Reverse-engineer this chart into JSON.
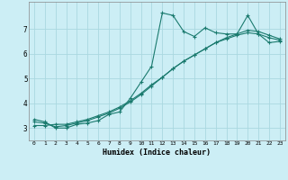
{
  "xlabel": "Humidex (Indice chaleur)",
  "bg_color": "#cceef5",
  "grid_color": "#aad8e0",
  "line_color": "#1a7a6e",
  "xlim": [
    -0.5,
    23.5
  ],
  "ylim": [
    2.5,
    8.1
  ],
  "yticks": [
    3,
    4,
    5,
    6,
    7
  ],
  "xticks": [
    0,
    1,
    2,
    3,
    4,
    5,
    6,
    7,
    8,
    9,
    10,
    11,
    12,
    13,
    14,
    15,
    16,
    17,
    18,
    19,
    20,
    21,
    22,
    23
  ],
  "series1_x": [
    0,
    1,
    2,
    3,
    4,
    5,
    6,
    7,
    8,
    9,
    10,
    11,
    12,
    13,
    14,
    15,
    16,
    17,
    18,
    19,
    20,
    21,
    22,
    23
  ],
  "series1_y": [
    3.35,
    3.25,
    3.0,
    3.0,
    3.15,
    3.2,
    3.3,
    3.55,
    3.65,
    4.2,
    4.85,
    5.5,
    7.65,
    7.55,
    6.9,
    6.7,
    7.05,
    6.85,
    6.8,
    6.8,
    7.55,
    6.8,
    6.45,
    6.5
  ],
  "series2_x": [
    0,
    1,
    2,
    3,
    4,
    5,
    6,
    7,
    8,
    9,
    10,
    11,
    12,
    13,
    14,
    15,
    16,
    17,
    18,
    19,
    20,
    21,
    22,
    23
  ],
  "series2_y": [
    3.1,
    3.1,
    3.15,
    3.15,
    3.25,
    3.35,
    3.5,
    3.65,
    3.85,
    4.1,
    4.4,
    4.75,
    5.05,
    5.4,
    5.7,
    5.95,
    6.2,
    6.45,
    6.6,
    6.75,
    6.85,
    6.8,
    6.65,
    6.55
  ],
  "series3_x": [
    0,
    1,
    2,
    3,
    4,
    5,
    6,
    7,
    8,
    9,
    10,
    11,
    12,
    13,
    14,
    15,
    16,
    17,
    18,
    19,
    20,
    21,
    22,
    23
  ],
  "series3_y": [
    3.25,
    3.2,
    3.05,
    3.1,
    3.2,
    3.3,
    3.45,
    3.6,
    3.8,
    4.05,
    4.35,
    4.7,
    5.05,
    5.4,
    5.7,
    5.95,
    6.2,
    6.45,
    6.65,
    6.8,
    6.95,
    6.9,
    6.75,
    6.6
  ]
}
